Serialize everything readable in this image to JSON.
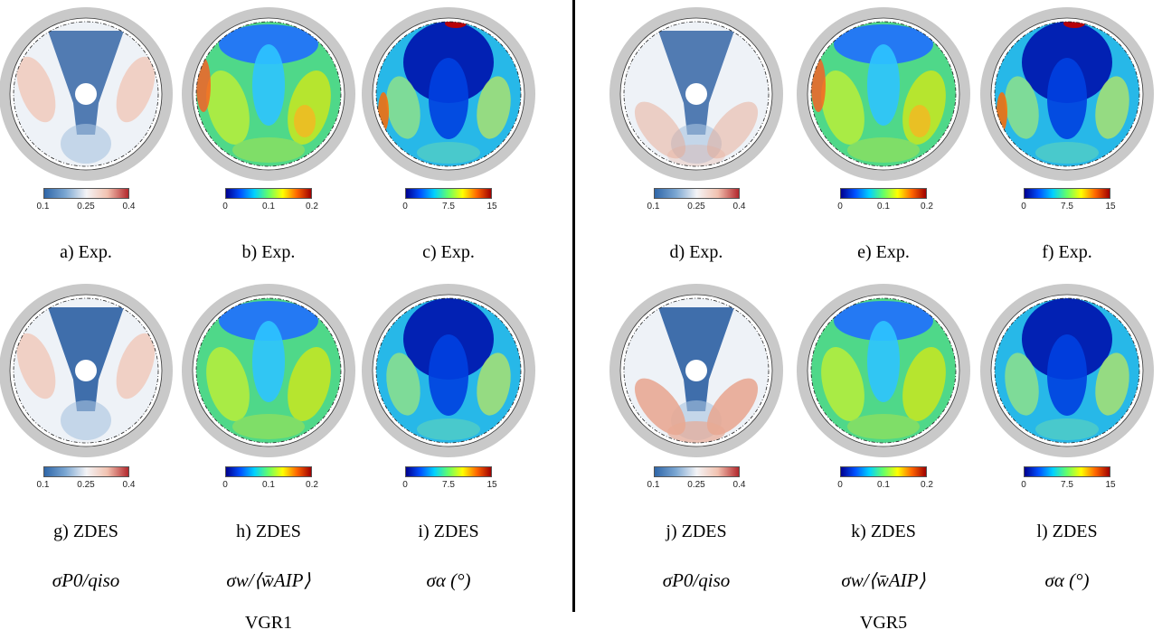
{
  "colors": {
    "ring": "#c9c9c9",
    "pressure_cmap": [
      "#2f66a8",
      "#7aa6d2",
      "#f4f4f6",
      "#f2c2b0",
      "#b3282d"
    ],
    "jet_cmap": [
      "#00008f",
      "#0050ff",
      "#00d0ff",
      "#66ff66",
      "#ffff00",
      "#ff6600",
      "#a00000"
    ]
  },
  "groups": [
    {
      "label": "VGR1",
      "columns": [
        {
          "metric": {
            "base": "σ",
            "sub": "P0",
            "rest": "/q",
            "rest_sub": "iso"
          },
          "metric_text": "σP0/qiso",
          "colorbar": {
            "cmap": "pressure",
            "ticks": [
              "0.1",
              "0.25",
              "0.4"
            ]
          },
          "panels": [
            {
              "caption": "a) Exp.",
              "kind": "pressure",
              "hub": true
            },
            {
              "caption": "g) ZDES",
              "kind": "pressure",
              "hub": true
            }
          ]
        },
        {
          "metric_text": "σw/⟨w̄AIP⟩",
          "colorbar": {
            "cmap": "jet",
            "ticks": [
              "0",
              "0.1",
              "0.2"
            ]
          },
          "panels": [
            {
              "caption": "b) Exp.",
              "kind": "velocity",
              "hub": false
            },
            {
              "caption": "h) ZDES",
              "kind": "velocity",
              "hub": false
            }
          ]
        },
        {
          "metric_text": "σα (°)",
          "colorbar": {
            "cmap": "jet",
            "ticks": [
              "0",
              "7.5",
              "15"
            ]
          },
          "panels": [
            {
              "caption": "c) Exp.",
              "kind": "angle",
              "hub": false
            },
            {
              "caption": "i) ZDES",
              "kind": "angle",
              "hub": false
            }
          ]
        }
      ]
    },
    {
      "label": "VGR5",
      "columns": [
        {
          "metric_text": "σP0/qiso",
          "colorbar": {
            "cmap": "pressure",
            "ticks": [
              "0.1",
              "0.25",
              "0.4"
            ]
          },
          "panels": [
            {
              "caption": "d) Exp.",
              "kind": "pressure",
              "hub": true
            },
            {
              "caption": "j) ZDES",
              "kind": "pressure",
              "hub": true
            }
          ]
        },
        {
          "metric_text": "σw/⟨w̄AIP⟩",
          "colorbar": {
            "cmap": "jet",
            "ticks": [
              "0",
              "0.1",
              "0.2"
            ]
          },
          "panels": [
            {
              "caption": "e) Exp.",
              "kind": "velocity",
              "hub": false
            },
            {
              "caption": "k) ZDES",
              "kind": "velocity",
              "hub": false
            }
          ]
        },
        {
          "metric_text": "σα (°)",
          "colorbar": {
            "cmap": "jet",
            "ticks": [
              "0",
              "7.5",
              "15"
            ]
          },
          "panels": [
            {
              "caption": "f) Exp.",
              "kind": "angle",
              "hub": false
            },
            {
              "caption": "l) ZDES",
              "kind": "angle",
              "hub": false
            }
          ]
        }
      ]
    }
  ]
}
